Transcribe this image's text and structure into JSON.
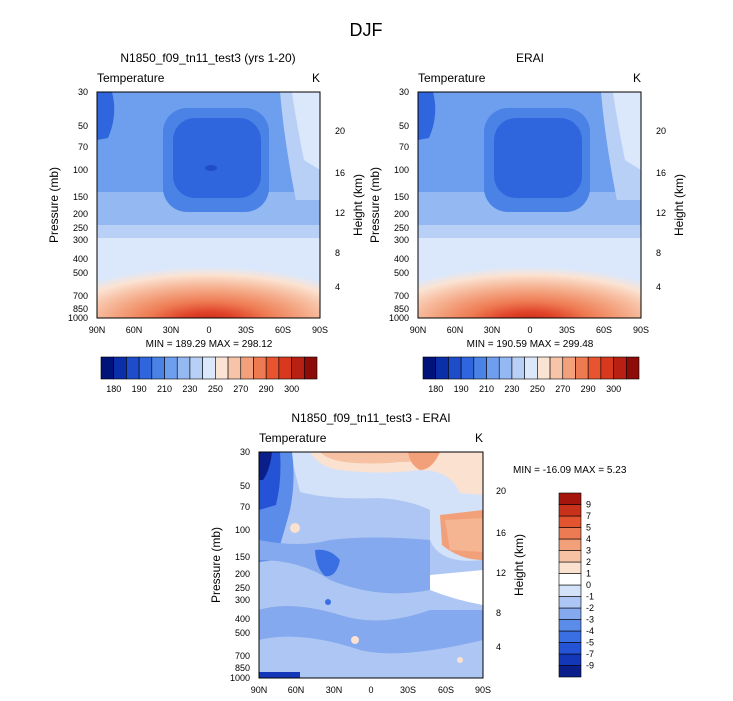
{
  "figure_title": "DJF",
  "colors": {
    "abs_palette": [
      "#00137a",
      "#0a2fa8",
      "#1f4dc9",
      "#2f66dd",
      "#4a82e6",
      "#6e9eee",
      "#93b8f2",
      "#b9d0f6",
      "#dbe8fb",
      "#fbe3d3",
      "#f8c4a9",
      "#f3a17d",
      "#ee7a52",
      "#e8542f",
      "#d8381d",
      "#b82013",
      "#8c0c0a"
    ],
    "diff_palette": [
      "#0a1f8a",
      "#1337b8",
      "#2453d6",
      "#3a6ee3",
      "#5b8ce9",
      "#84a9ee",
      "#aec6f3",
      "#d3e2f8",
      "#ffffff",
      "#fbe1d0",
      "#f7c2a3",
      "#f2a079",
      "#ec7a52",
      "#e2532f",
      "#c8321a",
      "#a4160d"
    ]
  },
  "chart_data": [
    {
      "type": "heatmap",
      "id": "model",
      "title": "N1850_f09_tn11_test3 (yrs 1-20)",
      "left_label": "Temperature",
      "right_label": "K",
      "ylabel": "Pressure (mb)",
      "y2label": "Height (km)",
      "x_ticks": [
        "90N",
        "60N",
        "30N",
        "0",
        "30S",
        "60S",
        "90S"
      ],
      "y_ticks": [
        "30",
        "50",
        "70",
        "100",
        "150",
        "200",
        "250",
        "300",
        "400",
        "500",
        "700",
        "850",
        "1000"
      ],
      "y2_ticks": [
        "20",
        "16",
        "12",
        "8",
        "4"
      ],
      "min": 189.29,
      "max": 298.12,
      "minmax_text": "MIN = 189.29  MAX = 298.12",
      "colorbar_labels": [
        "180",
        "190",
        "210",
        "230",
        "250",
        "270",
        "290",
        "300"
      ]
    },
    {
      "type": "heatmap",
      "id": "obs",
      "title": "ERAI",
      "left_label": "Temperature",
      "right_label": "K",
      "ylabel": "Pressure (mb)",
      "y2label": "Height (km)",
      "x_ticks": [
        "90N",
        "60N",
        "30N",
        "0",
        "30S",
        "60S",
        "90S"
      ],
      "y_ticks": [
        "30",
        "50",
        "70",
        "100",
        "150",
        "200",
        "250",
        "300",
        "400",
        "500",
        "700",
        "850",
        "1000"
      ],
      "y2_ticks": [
        "20",
        "16",
        "12",
        "8",
        "4"
      ],
      "min": 190.59,
      "max": 299.48,
      "minmax_text": "MIN = 190.59  MAX = 299.48",
      "colorbar_labels": [
        "180",
        "190",
        "210",
        "230",
        "250",
        "270",
        "290",
        "300"
      ]
    },
    {
      "type": "heatmap",
      "id": "diff",
      "title": "N1850_f09_tn11_test3 - ERAI",
      "left_label": "Temperature",
      "right_label": "K",
      "ylabel": "Pressure (mb)",
      "y2label": "Height (km)",
      "x_ticks": [
        "90N",
        "60N",
        "30N",
        "0",
        "30S",
        "60S",
        "90S"
      ],
      "y_ticks": [
        "30",
        "50",
        "70",
        "100",
        "150",
        "200",
        "250",
        "300",
        "400",
        "500",
        "700",
        "850",
        "1000"
      ],
      "y2_ticks": [
        "20",
        "16",
        "12",
        "8",
        "4"
      ],
      "min": -16.09,
      "max": 5.23,
      "minmax_text": "MIN = -16.09  MAX =   5.23",
      "colorbar_labels": [
        "9",
        "7",
        "5",
        "4",
        "3",
        "2",
        "1",
        "0",
        "-1",
        "-2",
        "-3",
        "-4",
        "-5",
        "-7",
        "-9"
      ]
    }
  ]
}
